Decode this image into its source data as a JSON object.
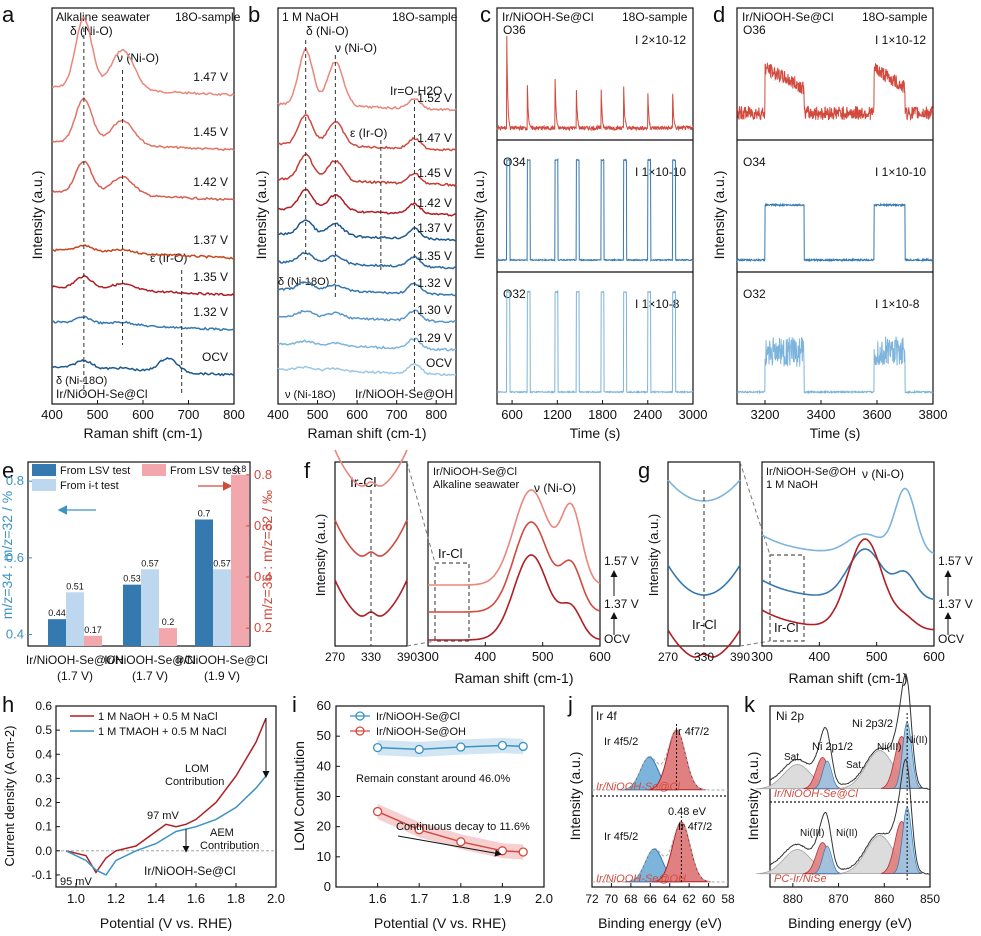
{
  "colors": {
    "red_dark": "#b01e24",
    "red_mid": "#d24a3e",
    "red_light": "#e9877c",
    "blue_dark": "#1d5a8e",
    "blue_mid": "#3579b1",
    "blue_light": "#7db4dc",
    "teal": "#3c93c4",
    "pink": "#f2a7ad",
    "lightblue": "#bcd7ee",
    "grey": "#c9c9c9",
    "orange": "#d9521f"
  },
  "panels": {
    "a": {
      "letter": "a",
      "label1": "Alkaline seawater",
      "label2": "18O-sample",
      "peak1": "δ (Ni-O)",
      "peak2": "ν (Ni-O)",
      "peak3": "ε (Ir-O)",
      "peak4": "δ (Ni-18O)",
      "sample": "Ir/NiOOH-Se@Cl",
      "ylabel": "Intensity (a.u.)",
      "xlabel": "Raman shift  (cm-1)",
      "xticks": [
        "400",
        "500",
        "600",
        "700",
        "800"
      ],
      "potentials": [
        "1.47 V",
        "1.45 V",
        "1.42 V",
        "1.37 V",
        "1.35 V",
        "1.32 V",
        "OCV"
      ]
    },
    "b": {
      "letter": "b",
      "label1": "1 M NaOH",
      "label2": "18O-sample",
      "peak1": "δ (Ni-O)",
      "peak2": "ν (Ni-O)",
      "peak3": "ε (Ir-O)",
      "peak4": "Ir=O-H2O",
      "peak5": "δ (Ni-18O)",
      "peak6": "ν (Ni-18O)",
      "sample": "Ir/NiOOH-Se@OH",
      "ylabel": "Intensity (a.u.)",
      "xlabel": "Raman shift  (cm-1)",
      "xticks": [
        "400",
        "500",
        "600",
        "700",
        "800"
      ],
      "potentials": [
        "1.52 V",
        "1.47 V",
        "1.45 V",
        "1.42 V",
        "1.37 V",
        "1.35 V",
        "1.32 V",
        "1.30 V",
        "1.29 V",
        "OCV"
      ]
    },
    "c": {
      "letter": "c",
      "sample": "Ir/NiOOH-Se@Cl",
      "label2": "18O-sample",
      "ylabel": "Intensity (a.u.)",
      "xlabel": "Time (s)",
      "xticks": [
        "600",
        "1200",
        "1800",
        "2400",
        "3000"
      ],
      "tracks": [
        {
          "name": "O36",
          "scale": "2×10-12"
        },
        {
          "name": "O34",
          "scale": "1×10-10"
        },
        {
          "name": "O32",
          "scale": "1×10-8"
        }
      ]
    },
    "d": {
      "letter": "d",
      "sample": "Ir/NiOOH-Se@Cl",
      "label2": "18O-sample",
      "ylabel": "Intensity (a.u.)",
      "xlabel": "Time (s)",
      "xticks": [
        "3200",
        "3400",
        "3600",
        "3800"
      ],
      "tracks": [
        {
          "name": "O36",
          "scale": "1×10-12"
        },
        {
          "name": "O34",
          "scale": "1×10-10"
        },
        {
          "name": "O32",
          "scale": "1×10-8"
        }
      ]
    },
    "e": {
      "letter": "e",
      "legend1": "From LSV test",
      "legend2": "From i-t test",
      "legend3": "From LSV test",
      "ylabel_left": "m/z=34 : m/z=32 / %",
      "ylabel_right": "m/z=36 : m/z=32 / ‰",
      "yticks_left": [
        "0.4",
        "0.6",
        "0.8"
      ],
      "yticks_right": [
        "0.2",
        "0.4",
        "0.6",
        "0.8"
      ]
    },
    "f": {
      "letter": "f",
      "peak_irc1": "Ir-Cl",
      "peak_irc2": "Ir-Cl",
      "sample": "Ir/NiOOH-Se@Cl",
      "label2": "Alkaline seawater",
      "peak_nio": "ν (Ni-O)",
      "ylabel": "Intensity (a.u.)",
      "xlabel": "Raman shift  (cm-1)",
      "xticks_inset": [
        "270",
        "330",
        "390"
      ],
      "xticks": [
        "300",
        "400",
        "500",
        "600"
      ],
      "potentials": [
        "1.57 V",
        "1.37 V",
        "OCV"
      ]
    },
    "g": {
      "letter": "g",
      "peak_irc1": "Ir-Cl",
      "peak_irc2": "Ir-Cl",
      "sample": "Ir/NiOOH-Se@OH",
      "label2": "1 M NaOH",
      "peak_nio": "ν (Ni-O)",
      "ylabel": "Intensity (a.u.)",
      "xlabel": "Raman shift  (cm-1)",
      "xticks_inset": [
        "270",
        "330",
        "390"
      ],
      "xticks": [
        "300",
        "400",
        "500",
        "600"
      ],
      "potentials": [
        "1.57 V",
        "1.37 V",
        "OCV"
      ]
    },
    "h": {
      "letter": "h",
      "legend1": "1 M NaOH + 0.5 M NaCl",
      "legend2": "1 M TMAOH + 0.5 M NaCl",
      "lom": "LOM",
      "lom2": "Contribution",
      "aem": "AEM",
      "aem2": "Contribution",
      "mv97": "97 mV",
      "mv95": "95 mV",
      "sample": "Ir/NiOOH-Se@Cl",
      "ylabel": "Current density (A cm-2)",
      "xlabel": "Potential (V vs. RHE)",
      "xticks": [
        "1.0",
        "1.2",
        "1.4",
        "1.6",
        "1.8",
        "2.0"
      ],
      "yticks": [
        "-0.1",
        "0.0",
        "0.1",
        "0.2",
        "0.3",
        "0.4",
        "0.5",
        "0.6"
      ]
    },
    "i": {
      "letter": "i",
      "legend1": "Ir/NiOOH-Se@Cl",
      "legend2": "Ir/NiOOH-Se@OH",
      "note1": "Remain constant around 46.0%",
      "note2": "Continuous decay to 11.6%",
      "ylabel": "LOM Contribution",
      "xlabel": "Potential (V vs. RHE)",
      "xticks": [
        "1.6",
        "1.7",
        "1.8",
        "1.9",
        "2.0"
      ],
      "yticks": [
        "0",
        "10",
        "20",
        "30",
        "40",
        "50",
        "60"
      ]
    },
    "j": {
      "letter": "j",
      "title": "Ir 4f",
      "p1": "Ir 4f5/2",
      "p2": "Ir 4f7/2",
      "p3": "Ir 4f5/2",
      "p4": "Ir 4f7/2",
      "shift": "0.48 eV",
      "sample1": "Ir/NiOOH-Se@Cl",
      "sample2": "Ir/NiOOH-Se@OH",
      "ylabel": "Intensity (a.u.)",
      "xlabel": "Binding energy (eV)",
      "xticks": [
        "72",
        "70",
        "68",
        "66",
        "64",
        "62",
        "60",
        "58"
      ]
    },
    "k": {
      "letter": "k",
      "title": "Ni 2p",
      "p1": "Ni 2p3/2",
      "p2": "Ni 2p1/2",
      "sat1": "Sat.",
      "sat2": "Sat.",
      "ni3a": "Ni(III)",
      "ni2a": "Ni(II)",
      "ni3b": "Ni(III)",
      "ni2b": "Ni(II)",
      "sample1": "Ir/NiOOH-Se@Cl",
      "sample2": "PC-Ir/NiSe",
      "ylabel": "Intensity (a.u.)",
      "xlabel": "Binding energy (eV)",
      "xticks": [
        "880",
        "870",
        "860",
        "850"
      ]
    }
  },
  "chart_data": [
    {
      "type": "line",
      "panel": "a",
      "title": "Alkaline seawater 18O-sample",
      "xlabel": "Raman shift (cm-1)",
      "ylabel": "Intensity (a.u.)",
      "xlim": [
        400,
        800
      ],
      "series": [
        {
          "name": "1.47 V"
        },
        {
          "name": "1.45 V"
        },
        {
          "name": "1.42 V"
        },
        {
          "name": "1.37 V"
        },
        {
          "name": "1.35 V"
        },
        {
          "name": "1.32 V"
        },
        {
          "name": "OCV"
        }
      ],
      "annotations": {
        "delta_Ni_O": 470,
        "nu_Ni_O": 555,
        "epsilon_Ir_O": 685,
        "delta_Ni_18O": 445
      }
    },
    {
      "type": "line",
      "panel": "b",
      "title": "1 M NaOH 18O-sample",
      "xlabel": "Raman shift (cm-1)",
      "ylabel": "Intensity (a.u.)",
      "xlim": [
        400,
        850
      ],
      "series": [
        {
          "name": "1.52 V"
        },
        {
          "name": "1.47 V"
        },
        {
          "name": "1.45 V"
        },
        {
          "name": "1.42 V"
        },
        {
          "name": "1.37 V"
        },
        {
          "name": "1.35 V"
        },
        {
          "name": "1.32 V"
        },
        {
          "name": "1.30 V"
        },
        {
          "name": "1.29 V"
        },
        {
          "name": "OCV"
        }
      ],
      "annotations": {
        "delta_Ni_O": 475,
        "nu_Ni_O": 545,
        "epsilon_Ir_O": 660,
        "Ir_O_H2O": 745,
        "delta_Ni_18O": 455,
        "nu_Ni_18O": 525
      }
    },
    {
      "type": "line",
      "panel": "c",
      "xlabel": "Time (s)",
      "ylabel": "Intensity (a.u.)",
      "xlim": [
        400,
        3000
      ],
      "series": [
        {
          "name": "O36",
          "pulse_times": [
            530,
            800,
            1170,
            1450,
            1780,
            2080,
            2400,
            2730
          ]
        },
        {
          "name": "O34",
          "pulse_times": [
            530,
            800,
            1170,
            1450,
            1780,
            2080,
            2400,
            2730
          ]
        },
        {
          "name": "O32",
          "pulse_times": [
            530,
            800,
            1170,
            1450,
            1780,
            2080,
            2400,
            2730
          ]
        }
      ]
    },
    {
      "type": "line",
      "panel": "d",
      "xlabel": "Time (s)",
      "ylabel": "Intensity (a.u.)",
      "xlim": [
        3100,
        3800
      ],
      "series": [
        {
          "name": "O36",
          "on_windows": [
            [
              3200,
              3340
            ],
            [
              3590,
              3700
            ]
          ]
        },
        {
          "name": "O34",
          "on_windows": [
            [
              3200,
              3340
            ],
            [
              3590,
              3700
            ]
          ]
        },
        {
          "name": "O32",
          "on_windows": [
            [
              3200,
              3340
            ],
            [
              3590,
              3700
            ]
          ]
        }
      ]
    },
    {
      "type": "bar",
      "panel": "e",
      "categories": [
        "Ir/NiOOH-Se@OH (1.7 V)",
        "Ir/NiOOH-Se@Cl (1.7 V)",
        "Ir/NiOOH-Se@Cl (1.9 V)"
      ],
      "cat_line1": [
        "Ir/NiOOH-Se@OH",
        "Ir/NiOOH-Se@Cl",
        "Ir/NiOOH-Se@Cl"
      ],
      "cat_line2": [
        "(1.7 V)",
        "(1.7 V)",
        "(1.9 V)"
      ],
      "series": [
        {
          "name": "From LSV test (m/z=34 : m/z=32 / %)",
          "values": [
            0.44,
            0.53,
            0.7
          ],
          "labels": [
            "0.44",
            "0.53",
            "0.7"
          ]
        },
        {
          "name": "From i-t test (m/z=34 : m/z=32 / %)",
          "values": [
            0.51,
            0.57,
            0.57
          ],
          "labels": [
            "0.51",
            "0.57",
            "0.57"
          ]
        },
        {
          "name": "From LSV test (m/z=36 : m/z=32 / ‰)",
          "values": [
            0.17,
            0.2,
            0.8
          ],
          "labels": [
            "0.17",
            "0.2",
            "0.8"
          ]
        }
      ],
      "ylim_left": [
        0.37,
        0.85
      ],
      "ylim_right": [
        0.13,
        0.85
      ]
    },
    {
      "type": "line",
      "panel": "f",
      "xlabel": "Raman shift (cm-1)",
      "ylabel": "Intensity (a.u.)",
      "xlim": [
        300,
        600
      ],
      "series": [
        {
          "name": "1.57 V"
        },
        {
          "name": "1.37 V"
        },
        {
          "name": "OCV"
        }
      ],
      "annotations": {
        "Ir_Cl": 330,
        "nu_Ni_O": 550
      }
    },
    {
      "type": "line",
      "panel": "g",
      "xlabel": "Raman shift (cm-1)",
      "ylabel": "Intensity (a.u.)",
      "xlim": [
        300,
        600
      ],
      "series": [
        {
          "name": "1.57 V"
        },
        {
          "name": "1.37 V"
        },
        {
          "name": "OCV"
        }
      ],
      "annotations": {
        "Ir_Cl": 330,
        "nu_Ni_O": 550
      }
    },
    {
      "type": "line",
      "panel": "h",
      "xlabel": "Potential (V vs. RHE)",
      "ylabel": "Current density (A cm-2)",
      "xlim": [
        0.9,
        2.0
      ],
      "ylim": [
        -0.15,
        0.6
      ],
      "series": [
        {
          "name": "1 M NaOH + 0.5 M NaCl",
          "x": [
            0.95,
            1.05,
            1.1,
            1.15,
            1.2,
            1.3,
            1.4,
            1.45,
            1.5,
            1.55,
            1.6,
            1.7,
            1.8,
            1.9,
            1.95
          ],
          "y": [
            0.0,
            -0.02,
            -0.09,
            -0.03,
            0.0,
            0.02,
            0.08,
            0.11,
            0.1,
            0.11,
            0.13,
            0.2,
            0.31,
            0.45,
            0.55
          ]
        },
        {
          "name": "1 M TMAOH + 0.5 M NaCl",
          "x": [
            0.95,
            1.05,
            1.1,
            1.15,
            1.2,
            1.3,
            1.4,
            1.5,
            1.55,
            1.6,
            1.7,
            1.8,
            1.9,
            1.95
          ],
          "y": [
            0.0,
            -0.04,
            -0.08,
            -0.1,
            -0.04,
            0.0,
            0.03,
            0.08,
            0.09,
            0.1,
            0.13,
            0.18,
            0.26,
            0.31
          ]
        }
      ]
    },
    {
      "type": "line",
      "panel": "i",
      "xlabel": "Potential (V vs. RHE)",
      "ylabel": "LOM Contribution",
      "xlim": [
        1.5,
        2.0
      ],
      "ylim": [
        0,
        60
      ],
      "series": [
        {
          "name": "Ir/NiOOH-Se@Cl",
          "x": [
            1.6,
            1.7,
            1.8,
            1.9,
            1.95
          ],
          "y": [
            46.2,
            45.6,
            46.4,
            46.9,
            46.6
          ]
        },
        {
          "name": "Ir/NiOOH-Se@OH",
          "x": [
            1.6,
            1.7,
            1.8,
            1.9,
            1.95
          ],
          "y": [
            25.0,
            19.0,
            15.0,
            12.0,
            11.6
          ]
        }
      ]
    },
    {
      "type": "area",
      "panel": "j",
      "xlabel": "Binding energy (eV)",
      "ylabel": "Intensity (a.u.)",
      "xlim": [
        72,
        58
      ],
      "series": [
        {
          "name": "Ir/NiOOH-Se@Cl",
          "peaks": [
            66.1,
            63.3
          ]
        },
        {
          "name": "Ir/NiOOH-Se@OH",
          "peaks": [
            65.6,
            62.8
          ]
        }
      ]
    },
    {
      "type": "area",
      "panel": "k",
      "xlabel": "Binding energy (eV)",
      "ylabel": "Intensity (a.u.)",
      "xlim": [
        885,
        850
      ],
      "series": [
        {
          "name": "Ir/NiOOH-Se@Cl",
          "peaks": [
            879,
            873,
            861,
            856,
            855
          ]
        },
        {
          "name": "PC-Ir/NiSe",
          "peaks": [
            879,
            873,
            861,
            856,
            855
          ]
        }
      ]
    }
  ]
}
